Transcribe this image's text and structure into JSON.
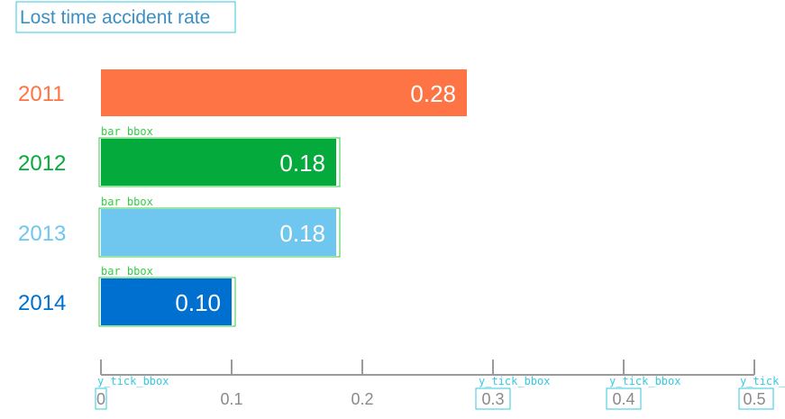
{
  "chart_data": {
    "type": "bar",
    "orientation": "horizontal",
    "title": "Lost time accident rate",
    "xlabel": "",
    "ylabel": "",
    "categories": [
      "2011",
      "2012",
      "2013",
      "2014"
    ],
    "values": [
      0.28,
      0.18,
      0.18,
      0.1
    ],
    "value_labels": [
      "0.28",
      "0.18",
      "0.18",
      "0.10"
    ],
    "colors": [
      "#ff7444",
      "#05aa3c",
      "#6fc7ef",
      "#0070d0"
    ],
    "xlim": [
      0,
      0.5
    ],
    "ticks": [
      0,
      0.1,
      0.2,
      0.3,
      0.4,
      0.5
    ],
    "tick_labels": [
      "0",
      "0.1",
      "0.2",
      "0.3",
      "0.4",
      "0.5"
    ],
    "grid": false,
    "legend": "none"
  },
  "annotations": {
    "bar_label": "bar_bbox",
    "tick_label": "y_tick_bbox",
    "tick_label_cut": "y_tick_",
    "bar_boxes_on": [
      1,
      2,
      3
    ],
    "tick_boxes_on": [
      0,
      3,
      4,
      5
    ],
    "tick_label_texts_on": [
      0,
      3,
      4,
      5
    ],
    "title_box": true,
    "colors": {
      "bar": "#33cc44",
      "tick": "#35c9e0",
      "title": "#35c9e0"
    }
  }
}
